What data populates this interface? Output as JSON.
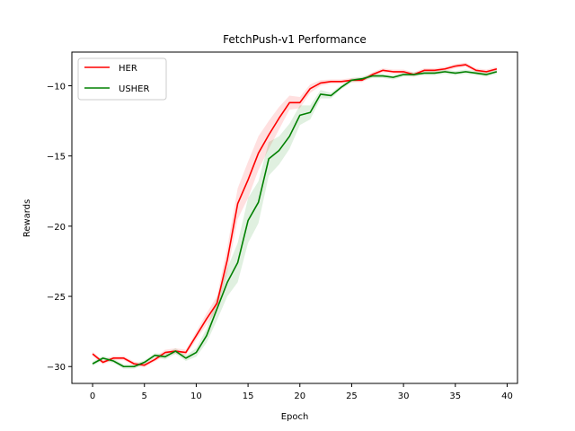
{
  "chart_data": {
    "type": "line",
    "title": "FetchPush-v1 Performance",
    "xlabel": "Epoch",
    "ylabel": "Rewards",
    "xlim": [
      -2,
      41
    ],
    "ylim": [
      -31.2,
      -7.6
    ],
    "xticks": [
      0,
      5,
      10,
      15,
      20,
      25,
      30,
      35,
      40
    ],
    "yticks": [
      -30,
      -25,
      -20,
      -15,
      -10
    ],
    "grid": false,
    "legend": "top-left",
    "x": [
      0,
      1,
      2,
      3,
      4,
      5,
      6,
      7,
      8,
      9,
      10,
      11,
      12,
      13,
      14,
      15,
      16,
      17,
      18,
      19,
      20,
      21,
      22,
      23,
      24,
      25,
      26,
      27,
      28,
      29,
      30,
      31,
      32,
      33,
      34,
      35,
      36,
      37,
      38,
      39
    ],
    "series": [
      {
        "name": "HER",
        "color": "#ff0000",
        "values": [
          -29.1,
          -29.7,
          -29.4,
          -29.4,
          -29.8,
          -29.9,
          -29.5,
          -29.0,
          -28.9,
          -29.0,
          -27.8,
          -26.6,
          -25.5,
          -22.4,
          -18.4,
          -16.7,
          -14.8,
          -13.5,
          -12.3,
          -11.2,
          -11.2,
          -10.2,
          -9.8,
          -9.7,
          -9.7,
          -9.6,
          -9.6,
          -9.2,
          -8.9,
          -9.0,
          -9.0,
          -9.2,
          -8.9,
          -8.9,
          -8.8,
          -8.6,
          -8.5,
          -8.9,
          -9.0,
          -8.8
        ],
        "band_width": [
          0.15,
          0.15,
          0.15,
          0.15,
          0.15,
          0.15,
          0.15,
          0.2,
          0.2,
          0.2,
          0.3,
          0.4,
          0.5,
          0.9,
          1.1,
          1.3,
          1.2,
          1.0,
          0.8,
          0.5,
          0.4,
          0.3,
          0.2,
          0.15,
          0.15,
          0.15,
          0.15,
          0.15,
          0.15,
          0.15,
          0.15,
          0.15,
          0.15,
          0.15,
          0.15,
          0.15,
          0.15,
          0.15,
          0.15,
          0.15
        ]
      },
      {
        "name": "USHER",
        "color": "#008000",
        "values": [
          -29.8,
          -29.4,
          -29.6,
          -30.0,
          -30.0,
          -29.7,
          -29.2,
          -29.3,
          -28.9,
          -29.4,
          -29.0,
          -27.8,
          -25.9,
          -24.0,
          -22.6,
          -19.6,
          -18.3,
          -15.2,
          -14.6,
          -13.6,
          -12.1,
          -11.9,
          -10.6,
          -10.7,
          -10.1,
          -9.6,
          -9.5,
          -9.3,
          -9.3,
          -9.4,
          -9.2,
          -9.2,
          -9.1,
          -9.1,
          -9.0,
          -9.1,
          -9.0,
          -9.1,
          -9.2,
          -9.0
        ],
        "band_width": [
          0.15,
          0.15,
          0.15,
          0.15,
          0.15,
          0.15,
          0.15,
          0.2,
          0.2,
          0.2,
          0.3,
          0.5,
          0.8,
          1.0,
          1.4,
          1.6,
          1.5,
          1.2,
          1.0,
          0.9,
          0.7,
          0.5,
          0.3,
          0.2,
          0.15,
          0.15,
          0.15,
          0.15,
          0.15,
          0.15,
          0.15,
          0.15,
          0.15,
          0.15,
          0.15,
          0.15,
          0.15,
          0.15,
          0.15,
          0.15
        ]
      }
    ]
  }
}
